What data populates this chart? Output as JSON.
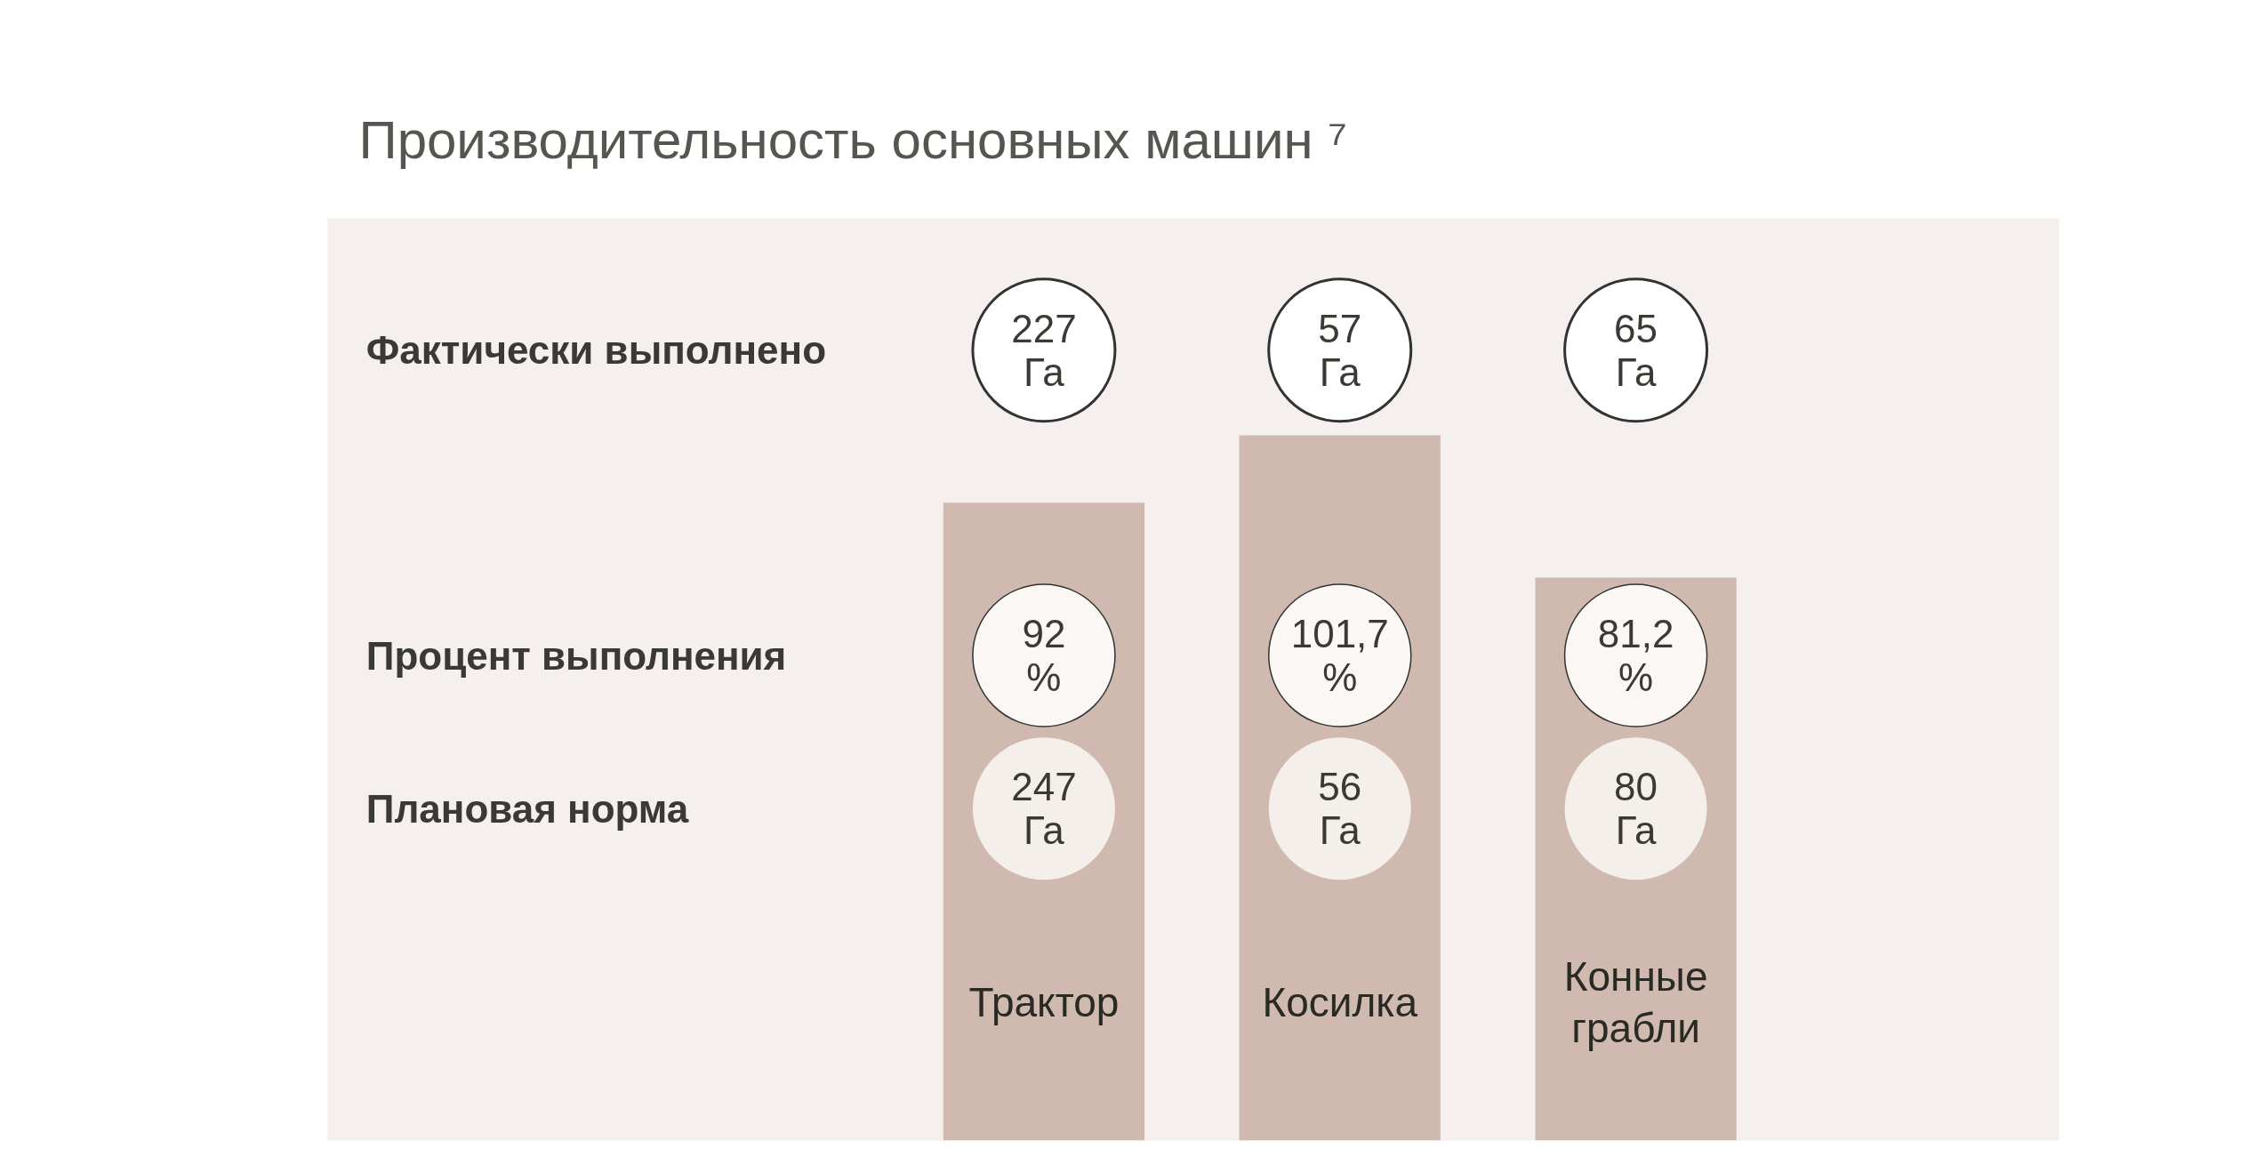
{
  "chart_data": {
    "type": "bar",
    "title": "Производительность основных машин ⁷",
    "categories": [
      "Трактор",
      "Косилка",
      "Конные грабли"
    ],
    "ylim": [
      0,
      133
    ],
    "series": [
      {
        "name": "Процент выполнения",
        "color": "#d0bab0",
        "values": [
          92,
          101.7,
          81.2
        ],
        "value_labels": [
          "92 %",
          "101,7 %",
          "81,2 %"
        ]
      }
    ],
    "annotations": [
      "Фактически выполнено",
      "227 Га",
      "57 Га",
      "65 Га",
      "Плановая норма",
      "247 Га",
      "56 Га",
      "80 Га"
    ]
  }
}
